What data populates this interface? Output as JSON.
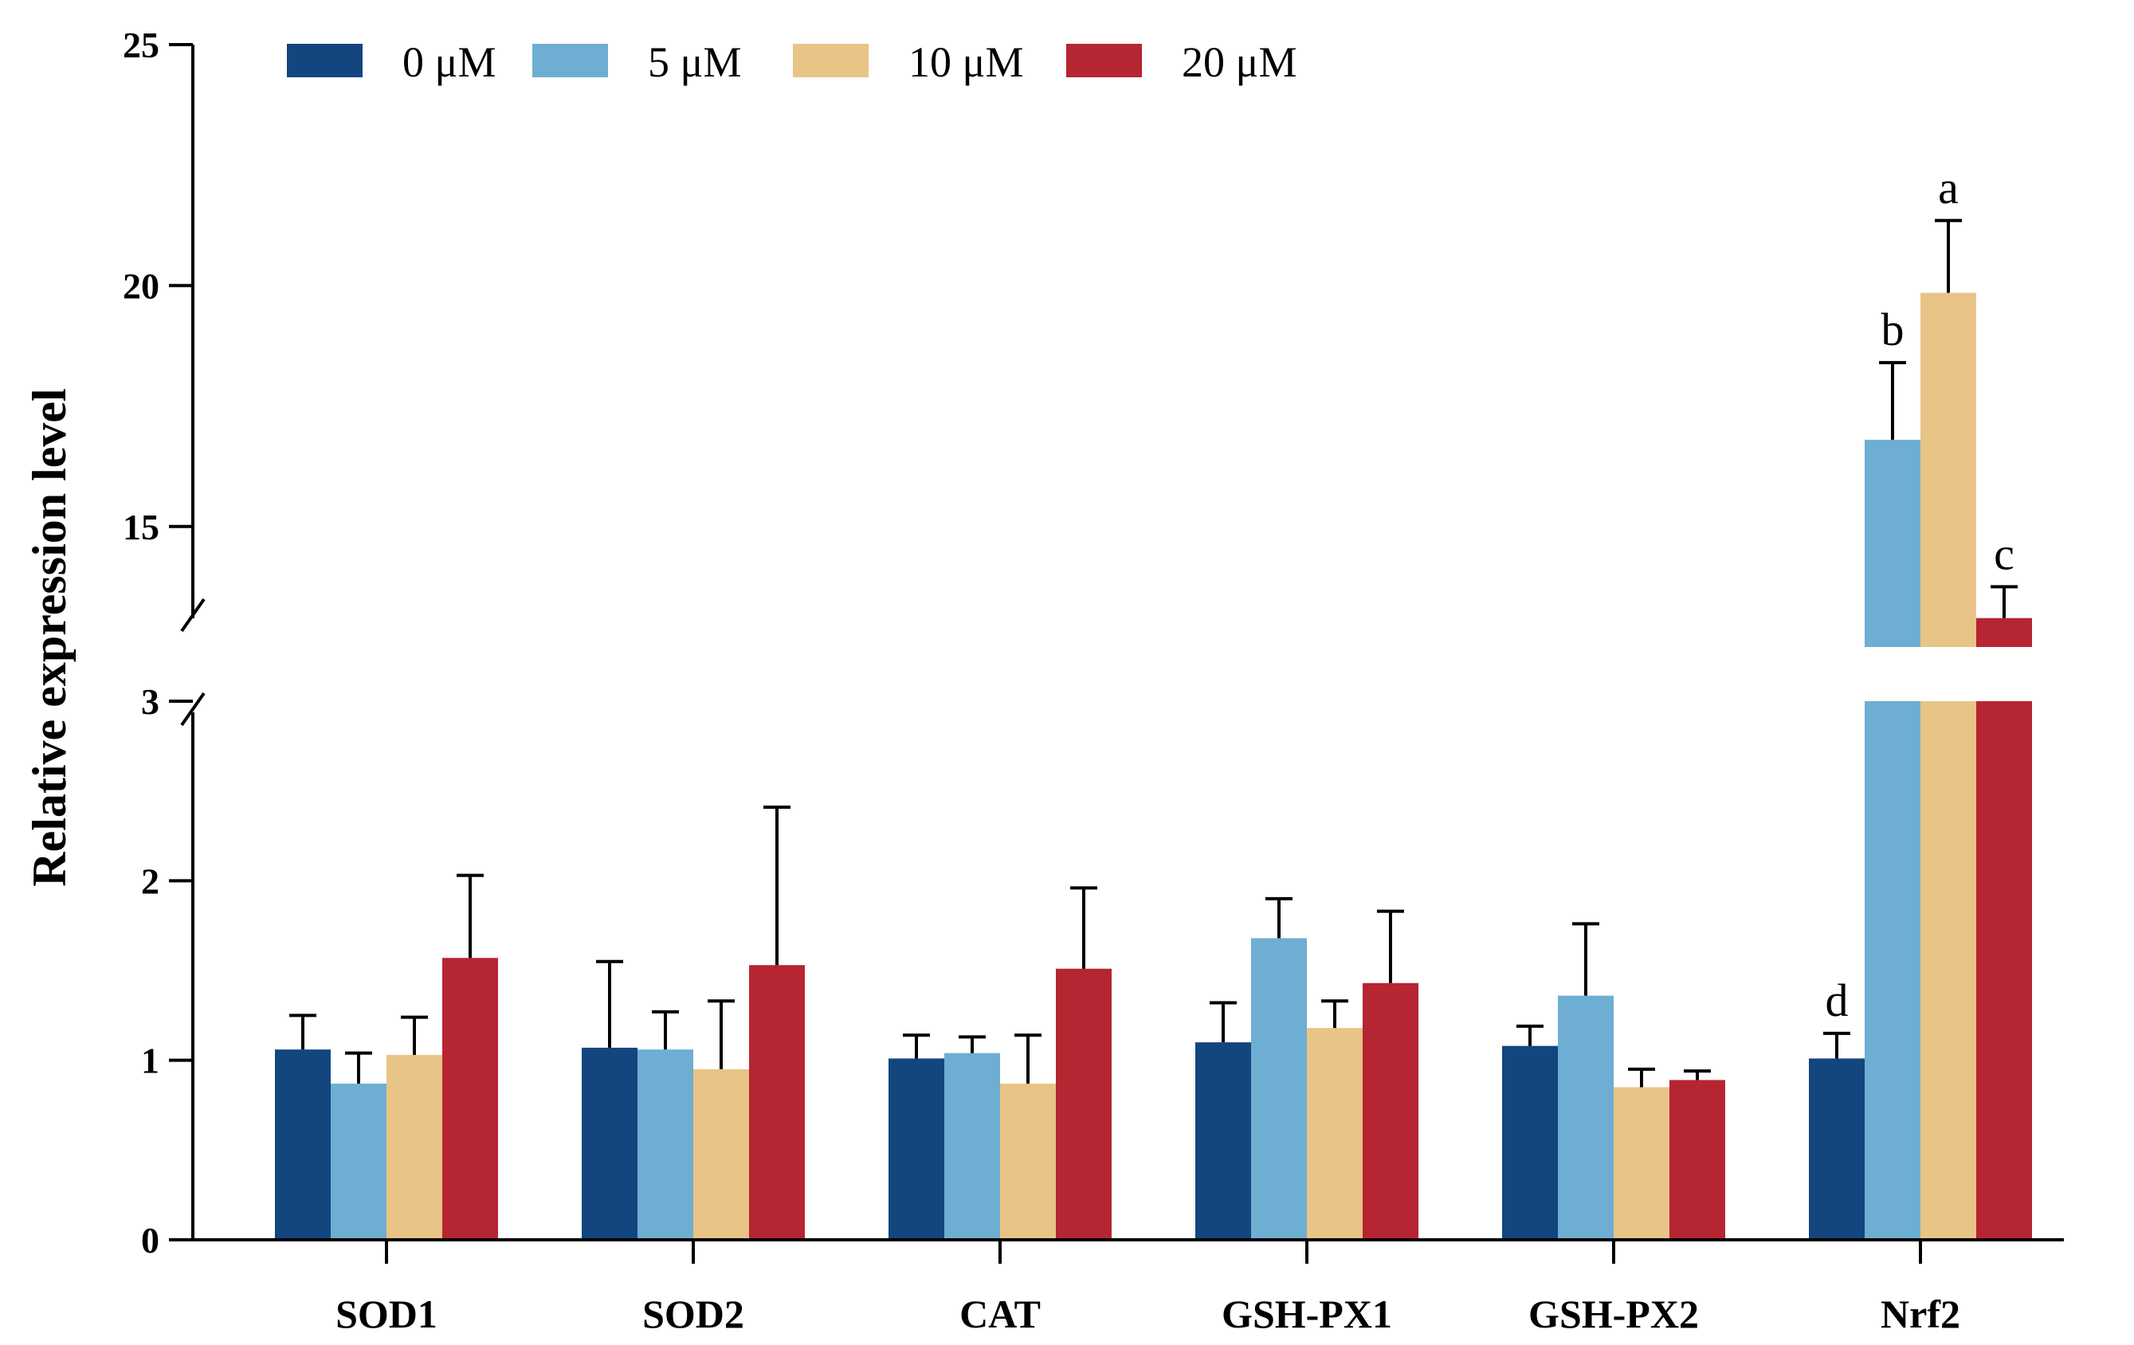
{
  "chart_data": {
    "type": "bar",
    "title": "",
    "xlabel": "",
    "ylabel": "Relative expression level",
    "categories": [
      "SOD1",
      "SOD2",
      "CAT",
      "GSH-PX1",
      "GSH-PX2",
      "Nrf2"
    ],
    "series": [
      {
        "name": "0 μM",
        "color": "#13457F",
        "values": [
          1.06,
          1.07,
          1.01,
          1.1,
          1.08,
          1.01
        ],
        "errors": [
          0.19,
          0.48,
          0.13,
          0.22,
          0.11,
          0.14
        ]
      },
      {
        "name": "5 μM",
        "color": "#6EAED2",
        "values": [
          0.87,
          1.06,
          1.04,
          1.68,
          1.36,
          16.8
        ],
        "errors": [
          0.17,
          0.21,
          0.09,
          0.22,
          0.4,
          1.6
        ]
      },
      {
        "name": "10 μM",
        "color": "#E8C487",
        "values": [
          1.03,
          0.95,
          0.87,
          1.18,
          0.85,
          19.85
        ],
        "errors": [
          0.21,
          0.38,
          0.27,
          0.15,
          0.1,
          1.5
        ]
      },
      {
        "name": "20 μM",
        "color": "#B52532",
        "values": [
          1.57,
          1.53,
          1.51,
          1.43,
          0.89,
          13.1
        ],
        "errors": [
          0.46,
          0.88,
          0.45,
          0.4,
          0.05,
          0.65
        ]
      }
    ],
    "significance_labels": {
      "category": "Nrf2",
      "letters": [
        "d",
        "b",
        "a",
        "c"
      ]
    },
    "axis": {
      "broken": true,
      "lower_range": [
        0,
        3
      ],
      "upper_range": [
        12.5,
        25
      ],
      "lower_ticks": [
        0,
        1,
        2,
        3
      ],
      "upper_ticks": [
        15,
        20,
        25
      ]
    },
    "legend": {
      "position": "top-left",
      "orientation": "horizontal"
    },
    "grid": false
  }
}
